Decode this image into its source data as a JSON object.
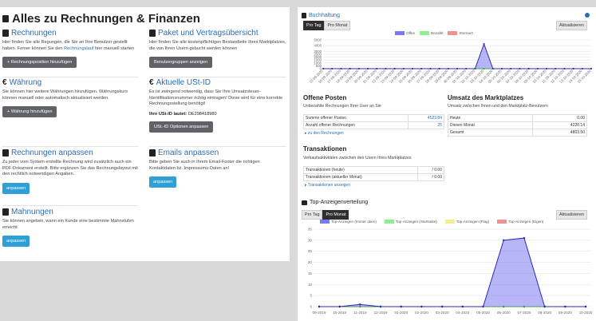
{
  "page": {
    "title": "Alles zu Rechnungen & Finanzen"
  },
  "left": {
    "invoices": {
      "title": "Rechnungen",
      "text_pre": "Hier finden Sie alle Regungen, die Sie an Ihre Benutzer gestellt haben. Ferner können Sie den ",
      "text_link": "Rechnungslauf",
      "text_post": " hier manuell starten",
      "button": "+ Rechnungsposition hinzufügen"
    },
    "package": {
      "title": "Paket und Vertragsübersicht",
      "text": "Hier finden Sie alle kostenpflichtigen Bestandteile Ihres Marktplatzes, die von Ihren Usern gebucht werden können",
      "button": "Benutzergruppen anzeigen"
    },
    "currency": {
      "title": "Währung",
      "text": "Sie können hier weitere Währungen hinzufügen. Währungskurs können manuell oder automatisch aktualisiert werden.",
      "button": "+ Währung hinzufügen"
    },
    "vatid": {
      "title": "Aktuelle USt-ID",
      "text": "Es ist zwingend notwendig, dass Sie Ihre Umsatzsteuer-Identifikationsnummer richtig eintragen! Diese wird für eine korrekte Rechnungsstellung benötigt!",
      "label": "Ihre USt-ID lautet:",
      "value": "DE298418980",
      "button": "USt.-ID Optionen anpassen"
    },
    "adjust": {
      "title": "Rechnungen anpassen",
      "text": "Zu jeder vom System erstellte Rechnung wird zusätzlich auch ein PDF-Dokument erstellt. Bitte ergänzen Sie das Rechnungslayout mit den rechtlich notwendigen Angaben.",
      "button": "anpassen"
    },
    "emails": {
      "title": "Emails anpassen",
      "text": "Bitte geben Sie auch in Ihrem Email-Footer die richtigen Kontaktdaten bz. Impressums-Daten an!",
      "button": "anpassen"
    },
    "reminders": {
      "title": "Mahnungen",
      "text": "Sie können angeben, wann ein Kunde eine bestimmte Mahnstufen erreicht",
      "button": "anpassen"
    }
  },
  "right": {
    "accounting": {
      "title": "Buchhaltung",
      "tabs": [
        "Pro Tag",
        "Pro Monat"
      ],
      "active_tab": "Pro Tag",
      "refresh": "Aktualisieren",
      "legend": [
        {
          "label": "Offen",
          "color": "#7b7bf0"
        },
        {
          "label": "Bezahlt",
          "color": "#8ef08e"
        },
        {
          "label": "Storniert",
          "color": "#f09090"
        }
      ]
    },
    "open_items": {
      "title": "Offene Posten",
      "subtitle": "Unbezahlte Rechnungen Ihrer User an Sie",
      "rows": [
        {
          "label": "Summe offener Posten",
          "value": "4523.84"
        },
        {
          "label": "Anzahl offener Rechnungen",
          "value": "25"
        }
      ],
      "link": "▸ zu den Rechnungen"
    },
    "revenue": {
      "title": "Umsatz des Marktplatzes",
      "subtitle": "Umsatz zwischen Ihnen und den Marktplatz-Benutzern",
      "rows": [
        {
          "label": "Heute",
          "value": "0.00"
        },
        {
          "label": "Diesen Monat",
          "value": "4220.14"
        },
        {
          "label": "Gesamt",
          "value": "4803.50"
        }
      ]
    },
    "transactions": {
      "title": "Transaktionen",
      "subtitle": "Verkaufsaktivitäten zwischen den Usern Ihres Marktplatzes",
      "rows": [
        {
          "label": "Transaktionen (heute)",
          "value": "/ 0.00"
        },
        {
          "label": "Transaktionen (aktueller Monat):",
          "value": "/ 0.00"
        }
      ],
      "link": "▸ Transaktionen anzeigen"
    },
    "top_ads": {
      "title": "Top-Anzeigenverteilung",
      "tabs": [
        "Pro Tag",
        "Pro Monat"
      ],
      "active_tab": "Pro Monat",
      "refresh": "Aktualisieren",
      "legend": [
        {
          "label": "Top-Anzeigen (Immer oben)",
          "color": "#7b7bf0"
        },
        {
          "label": "Top-Anzeigen (Startseite)",
          "color": "#8ef08e"
        },
        {
          "label": "Top-Anzeigen (Flag)",
          "color": "#f0f08e"
        },
        {
          "label": "Top-Anzeigen (Eigen)",
          "color": "#f09090"
        }
      ]
    }
  },
  "chart_data": [
    {
      "type": "area",
      "x": [
        "15-09-2020",
        "16-09-2020",
        "17-09-2020",
        "18-09-2020",
        "19-09-2020",
        "20-09-2020",
        "21-09-2020",
        "22-09-2020",
        "23-09-2020",
        "24-09-2020",
        "25-09-2020",
        "26-09-2020",
        "27-09-2020",
        "28-09-2020",
        "29-09-2020",
        "30-09-2020",
        "01-10-2020",
        "02-10-2020",
        "03-10-2020",
        "04-10-2020",
        "05-10-2020",
        "06-10-2020",
        "07-10-2020",
        "08-10-2020",
        "09-10-2020",
        "10-10-2020",
        "11-10-2020",
        "12-10-2020",
        "13-10-2020",
        "14-10-2020",
        "15-10-2020"
      ],
      "series": [
        {
          "name": "Offen",
          "values": [
            0,
            0,
            0,
            0,
            0,
            0,
            0,
            0,
            0,
            0,
            0,
            0,
            0,
            0,
            0,
            0,
            0,
            0,
            4300,
            0,
            0,
            0,
            0,
            0,
            0,
            0,
            0,
            0,
            0,
            0,
            0
          ]
        },
        {
          "name": "Bezahlt",
          "values": [
            0,
            0,
            0,
            0,
            0,
            0,
            0,
            0,
            0,
            0,
            0,
            0,
            0,
            0,
            0,
            0,
            0,
            0,
            0,
            0,
            0,
            0,
            0,
            0,
            0,
            0,
            0,
            0,
            0,
            0,
            0
          ]
        },
        {
          "name": "Storniert",
          "values": [
            0,
            0,
            0,
            0,
            0,
            0,
            0,
            0,
            0,
            0,
            0,
            0,
            0,
            0,
            0,
            0,
            0,
            0,
            0,
            0,
            0,
            0,
            0,
            0,
            0,
            0,
            0,
            0,
            0,
            0,
            0
          ]
        }
      ],
      "yticks": [
        0,
        500,
        1000,
        1500,
        2000,
        2500,
        3000,
        4000,
        5000
      ],
      "ylim": [
        0,
        5000
      ]
    },
    {
      "type": "area",
      "x": [
        "09-2019",
        "10-2019",
        "11-2019",
        "12-2019",
        "01-2020",
        "02-2020",
        "03-2020",
        "04-2020",
        "05-2020",
        "06-2020",
        "07-2020",
        "08-2020",
        "09-2020",
        "10-2020"
      ],
      "series": [
        {
          "name": "Top-Anzeigen (Immer oben)",
          "values": [
            0,
            0,
            1,
            0,
            0,
            0,
            0,
            0,
            0,
            30,
            31,
            0,
            0,
            0
          ]
        },
        {
          "name": "Top-Anzeigen (Startseite)",
          "values": [
            0,
            0,
            0,
            0,
            0,
            0,
            0,
            0,
            0,
            0,
            0,
            0,
            0,
            0
          ]
        },
        {
          "name": "Top-Anzeigen (Flag)",
          "values": [
            0,
            0,
            0,
            0,
            0,
            0,
            0,
            0,
            0,
            0,
            0,
            0,
            0,
            0
          ]
        },
        {
          "name": "Top-Anzeigen (Eigen)",
          "values": [
            0,
            0,
            0,
            0,
            0,
            0,
            0,
            0,
            0,
            0,
            0,
            0,
            0,
            0
          ]
        }
      ],
      "yticks": [
        0,
        5,
        10,
        15,
        20,
        25,
        30,
        35
      ],
      "ylim": [
        0,
        35
      ]
    }
  ]
}
